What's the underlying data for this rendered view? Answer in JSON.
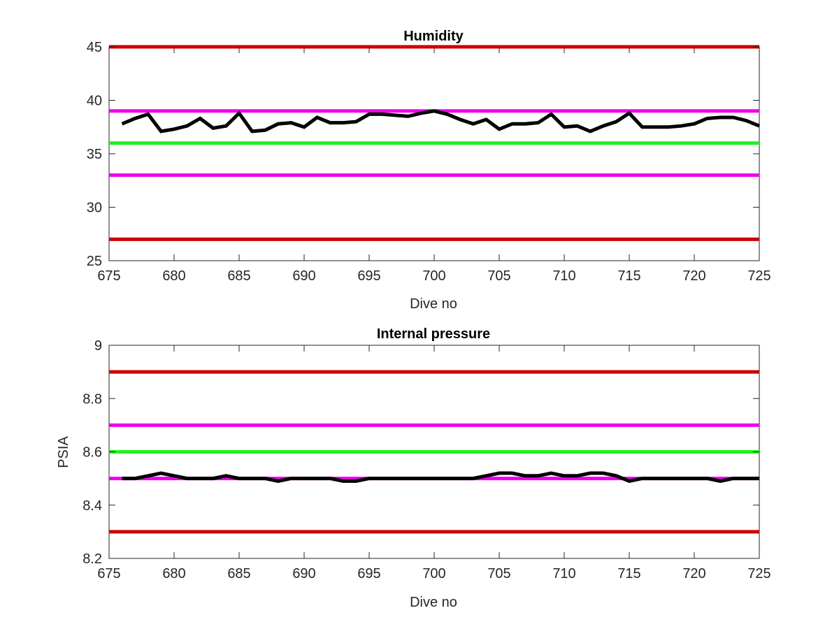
{
  "chart_data": [
    {
      "type": "line",
      "title": "Humidity",
      "xlabel": "Dive no",
      "ylabel": "",
      "xlim": [
        675,
        725
      ],
      "ylim": [
        25,
        45
      ],
      "xticks": [
        "675",
        "680",
        "685",
        "690",
        "695",
        "700",
        "705",
        "710",
        "715",
        "720",
        "725"
      ],
      "yticks": [
        "25",
        "30",
        "35",
        "40",
        "45"
      ],
      "grid": false,
      "x": [
        676,
        677,
        678,
        679,
        680,
        681,
        682,
        683,
        684,
        685,
        686,
        687,
        688,
        689,
        690,
        691,
        692,
        693,
        694,
        695,
        696,
        697,
        698,
        699,
        700,
        701,
        702,
        703,
        704,
        705,
        706,
        707,
        708,
        709,
        710,
        711,
        712,
        713,
        714,
        715,
        716,
        717,
        718,
        719,
        720,
        721,
        722,
        723,
        724,
        725
      ],
      "series": [
        {
          "color": "#000000",
          "values": [
            37.8,
            38.3,
            38.7,
            37.1,
            37.3,
            37.6,
            38.3,
            37.4,
            37.6,
            38.8,
            37.1,
            37.2,
            37.8,
            37.9,
            37.5,
            38.4,
            37.9,
            37.9,
            38.0,
            38.7,
            38.7,
            38.6,
            38.5,
            38.8,
            39.0,
            38.7,
            38.2,
            37.8,
            38.2,
            37.3,
            37.8,
            37.8,
            37.9,
            38.7,
            37.5,
            37.6,
            37.1,
            37.6,
            38.0,
            38.8,
            37.5,
            37.5,
            37.5,
            37.6,
            37.8,
            38.3,
            38.4,
            38.4,
            38.1,
            37.6
          ]
        }
      ],
      "reference_lines": [
        {
          "y": 45,
          "color": "#cc0000"
        },
        {
          "y": 39,
          "color": "#ee00ee"
        },
        {
          "y": 36,
          "color": "#22ee22"
        },
        {
          "y": 33,
          "color": "#ee00ee"
        },
        {
          "y": 27,
          "color": "#cc0000"
        }
      ]
    },
    {
      "type": "line",
      "title": "Internal pressure",
      "xlabel": "Dive no",
      "ylabel": "PSIA",
      "xlim": [
        675,
        725
      ],
      "ylim": [
        8.2,
        9
      ],
      "xticks": [
        "675",
        "680",
        "685",
        "690",
        "695",
        "700",
        "705",
        "710",
        "715",
        "720",
        "725"
      ],
      "yticks": [
        "8.2",
        "8.4",
        "8.6",
        "8.8",
        "9"
      ],
      "grid": false,
      "x": [
        676,
        677,
        678,
        679,
        680,
        681,
        682,
        683,
        684,
        685,
        686,
        687,
        688,
        689,
        690,
        691,
        692,
        693,
        694,
        695,
        696,
        697,
        698,
        699,
        700,
        701,
        702,
        703,
        704,
        705,
        706,
        707,
        708,
        709,
        710,
        711,
        712,
        713,
        714,
        715,
        716,
        717,
        718,
        719,
        720,
        721,
        722,
        723,
        724,
        725
      ],
      "series": [
        {
          "color": "#000000",
          "values": [
            8.5,
            8.5,
            8.51,
            8.52,
            8.51,
            8.5,
            8.5,
            8.5,
            8.51,
            8.5,
            8.5,
            8.5,
            8.49,
            8.5,
            8.5,
            8.5,
            8.5,
            8.49,
            8.49,
            8.5,
            8.5,
            8.5,
            8.5,
            8.5,
            8.5,
            8.5,
            8.5,
            8.5,
            8.51,
            8.52,
            8.52,
            8.51,
            8.51,
            8.52,
            8.51,
            8.51,
            8.52,
            8.52,
            8.51,
            8.49,
            8.5,
            8.5,
            8.5,
            8.5,
            8.5,
            8.5,
            8.49,
            8.5,
            8.5,
            8.5
          ]
        }
      ],
      "reference_lines": [
        {
          "y": 8.9,
          "color": "#cc0000"
        },
        {
          "y": 8.7,
          "color": "#ee00ee"
        },
        {
          "y": 8.6,
          "color": "#22ee22"
        },
        {
          "y": 8.5,
          "color": "#ee00ee"
        },
        {
          "y": 8.3,
          "color": "#cc0000"
        }
      ]
    }
  ]
}
